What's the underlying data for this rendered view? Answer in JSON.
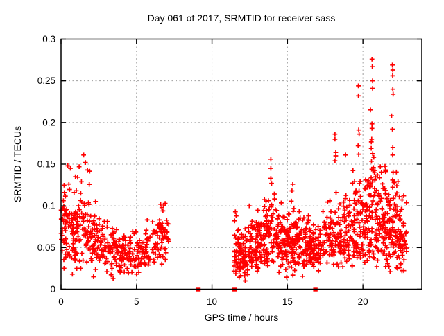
{
  "chart_data": {
    "type": "scatter",
    "title": "Day 061 of 2017, SRMTID for receiver sass",
    "xlabel": "GPS time / hours",
    "ylabel": "SRMTID / TECUs",
    "xlim": [
      0,
      23.9
    ],
    "ylim": [
      0,
      0.3
    ],
    "x_ticks": [
      0,
      5,
      10,
      15,
      20
    ],
    "x_tick_labels": [
      "0",
      "5",
      "10",
      "15",
      "20"
    ],
    "y_ticks": [
      0,
      0.05,
      0.1,
      0.15,
      0.2,
      0.25,
      0.3
    ],
    "y_tick_labels": [
      "0",
      "0.05",
      "0.1",
      "0.15",
      "0.2",
      "0.25",
      "0.3"
    ],
    "grid": true,
    "legend": "none",
    "marker": "plus",
    "marker_color": "#ff0000",
    "grid_color": "#9e9e9e",
    "frame_color": "#000000",
    "seed": 61,
    "series_name": "SRMTID",
    "clusters": [
      {
        "x0": 0.0,
        "x1": 0.4,
        "n": 45,
        "mean": 0.075,
        "sd": 0.025,
        "min": 0.02,
        "max": 0.152
      },
      {
        "x0": 0.4,
        "x1": 1.0,
        "n": 55,
        "mean": 0.07,
        "sd": 0.025,
        "min": 0.02,
        "max": 0.15
      },
      {
        "x0": 1.0,
        "x1": 1.9,
        "n": 65,
        "mean": 0.072,
        "sd": 0.027,
        "min": 0.02,
        "max": 0.163
      },
      {
        "x0": 1.9,
        "x1": 2.7,
        "n": 55,
        "mean": 0.058,
        "sd": 0.02,
        "min": 0.018,
        "max": 0.12
      },
      {
        "x0": 2.7,
        "x1": 3.7,
        "n": 65,
        "mean": 0.048,
        "sd": 0.015,
        "min": 0.014,
        "max": 0.1
      },
      {
        "x0": 3.7,
        "x1": 4.7,
        "n": 70,
        "mean": 0.042,
        "sd": 0.012,
        "min": 0.015,
        "max": 0.08
      },
      {
        "x0": 4.7,
        "x1": 5.7,
        "n": 60,
        "mean": 0.045,
        "sd": 0.013,
        "min": 0.02,
        "max": 0.085
      },
      {
        "x0": 5.7,
        "x1": 6.4,
        "n": 28,
        "mean": 0.05,
        "sd": 0.015,
        "min": 0.02,
        "max": 0.09
      },
      {
        "x0": 6.4,
        "x1": 7.15,
        "n": 45,
        "mean": 0.062,
        "sd": 0.02,
        "min": 0.028,
        "max": 0.105
      },
      {
        "x0": 11.45,
        "x1": 12.4,
        "n": 85,
        "mean": 0.04,
        "sd": 0.013,
        "min": 0.012,
        "max": 0.09
      },
      {
        "x0": 12.4,
        "x1": 13.4,
        "n": 85,
        "mean": 0.055,
        "sd": 0.018,
        "min": 0.02,
        "max": 0.115
      },
      {
        "x0": 13.4,
        "x1": 14.4,
        "n": 90,
        "mean": 0.065,
        "sd": 0.022,
        "min": 0.025,
        "max": 0.145
      },
      {
        "x0": 14.4,
        "x1": 15.2,
        "n": 75,
        "mean": 0.058,
        "sd": 0.018,
        "min": 0.02,
        "max": 0.115
      },
      {
        "x0": 15.2,
        "x1": 15.6,
        "n": 45,
        "mean": 0.055,
        "sd": 0.022,
        "min": 0.015,
        "max": 0.126
      },
      {
        "x0": 15.6,
        "x1": 16.5,
        "n": 75,
        "mean": 0.053,
        "sd": 0.016,
        "min": 0.025,
        "max": 0.1
      },
      {
        "x0": 16.5,
        "x1": 17.3,
        "n": 65,
        "mean": 0.05,
        "sd": 0.015,
        "min": 0.022,
        "max": 0.095
      },
      {
        "x0": 17.3,
        "x1": 18.3,
        "n": 70,
        "mean": 0.06,
        "sd": 0.022,
        "min": 0.025,
        "max": 0.15
      },
      {
        "x0": 18.3,
        "x1": 19.3,
        "n": 75,
        "mean": 0.065,
        "sd": 0.025,
        "min": 0.025,
        "max": 0.16
      },
      {
        "x0": 19.3,
        "x1": 19.9,
        "n": 55,
        "mean": 0.08,
        "sd": 0.035,
        "min": 0.03,
        "max": 0.2
      },
      {
        "x0": 19.9,
        "x1": 20.4,
        "n": 45,
        "mean": 0.075,
        "sd": 0.03,
        "min": 0.03,
        "max": 0.17
      },
      {
        "x0": 20.4,
        "x1": 20.9,
        "n": 60,
        "mean": 0.09,
        "sd": 0.045,
        "min": 0.03,
        "max": 0.23
      },
      {
        "x0": 20.9,
        "x1": 21.6,
        "n": 70,
        "mean": 0.08,
        "sd": 0.03,
        "min": 0.025,
        "max": 0.15
      },
      {
        "x0": 21.6,
        "x1": 22.3,
        "n": 75,
        "mean": 0.075,
        "sd": 0.03,
        "min": 0.02,
        "max": 0.2
      },
      {
        "x0": 22.3,
        "x1": 22.9,
        "n": 55,
        "mean": 0.062,
        "sd": 0.025,
        "min": 0.02,
        "max": 0.135
      }
    ],
    "extra_points": [
      [
        0.45,
        0.148
      ],
      [
        0.62,
        0.145
      ],
      [
        1.5,
        0.161
      ],
      [
        1.62,
        0.152
      ],
      [
        1.75,
        0.143
      ],
      [
        1.2,
        0.147
      ],
      [
        0.95,
        0.135
      ],
      [
        1.35,
        0.129
      ],
      [
        6.6,
        0.102
      ],
      [
        6.68,
        0.098
      ],
      [
        6.8,
        0.1
      ],
      [
        6.9,
        0.103
      ],
      [
        6.75,
        0.094
      ],
      [
        11.55,
        0.093
      ],
      [
        11.6,
        0.088
      ],
      [
        11.5,
        0.082
      ],
      [
        13.9,
        0.156
      ],
      [
        13.9,
        0.145
      ],
      [
        13.9,
        0.133
      ],
      [
        13.95,
        0.127
      ],
      [
        15.35,
        0.126
      ],
      [
        15.3,
        0.118
      ],
      [
        18.15,
        0.186
      ],
      [
        18.15,
        0.18
      ],
      [
        18.2,
        0.164
      ],
      [
        18.2,
        0.16
      ],
      [
        18.15,
        0.154
      ],
      [
        18.85,
        0.161
      ],
      [
        19.7,
        0.244
      ],
      [
        19.7,
        0.232
      ],
      [
        19.72,
        0.191
      ],
      [
        19.75,
        0.186
      ],
      [
        19.68,
        0.172
      ],
      [
        19.72,
        0.162
      ],
      [
        20.6,
        0.276
      ],
      [
        20.62,
        0.267
      ],
      [
        20.64,
        0.25
      ],
      [
        20.64,
        0.241
      ],
      [
        20.6,
        0.193
      ],
      [
        20.58,
        0.18
      ],
      [
        20.55,
        0.169
      ],
      [
        20.5,
        0.215
      ],
      [
        21.95,
        0.269
      ],
      [
        21.98,
        0.263
      ],
      [
        21.97,
        0.256
      ],
      [
        21.98,
        0.24
      ],
      [
        22.0,
        0.234
      ],
      [
        21.95,
        0.192
      ],
      [
        21.98,
        0.17
      ],
      [
        21.97,
        0.161
      ],
      [
        21.9,
        0.208
      ],
      [
        21.15,
        0.147
      ],
      [
        12.2,
        0.01
      ],
      [
        14.95,
        0.0145
      ],
      [
        21.8,
        0.021
      ],
      [
        2.15,
        0.015
      ],
      [
        3.45,
        0.013
      ],
      [
        0.75,
        0.018
      ],
      [
        5.0,
        0.018
      ],
      [
        16.0,
        0.0155
      ],
      [
        22.3,
        0.025
      ]
    ],
    "zero_markers": [
      9.1,
      11.5,
      16.85
    ]
  }
}
